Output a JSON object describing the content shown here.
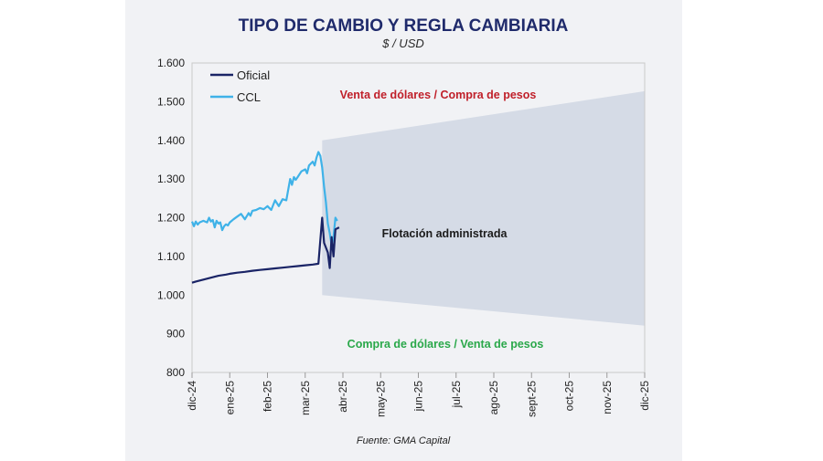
{
  "chart_data": {
    "type": "line",
    "title": "TIPO DE CAMBIO Y REGLA CAMBIARIA",
    "subtitle": "$ / USD",
    "source": "Fuente: GMA Capital",
    "xlabel": "",
    "ylabel": "",
    "ylim": [
      800,
      1600
    ],
    "yticks": [
      "800",
      "900",
      "1.000",
      "1.100",
      "1.200",
      "1.300",
      "1.400",
      "1.500",
      "1.600"
    ],
    "ytick_values": [
      800,
      900,
      1000,
      1100,
      1200,
      1300,
      1400,
      1500,
      1600
    ],
    "x_ticks": [
      "dic-24",
      "ene-25",
      "feb-25",
      "mar-25",
      "abr-25",
      "may-25",
      "jun-25",
      "jul-25",
      "ago-25",
      "sept-25",
      "oct-25",
      "nov-25",
      "dic-25"
    ],
    "x_unit": "months since dic-24 (tick index)",
    "legend": {
      "position": "top-left",
      "entries": [
        "Oficial",
        "CCL"
      ]
    },
    "colors": {
      "oficial": "#1a2466",
      "ccl": "#3fb2e8",
      "band": "#d5dbe6",
      "upper_label": "#c0202a",
      "lower_label": "#2aa84a",
      "middle_label": "#1b1b1b"
    },
    "series": [
      {
        "name": "Oficial",
        "color": "#1a2466",
        "x": [
          0,
          0.1,
          0.3,
          0.5,
          0.7,
          0.9,
          1.0,
          1.2,
          1.4,
          1.6,
          1.8,
          2.0,
          2.2,
          2.4,
          2.6,
          2.8,
          3.0,
          3.2,
          3.35,
          3.45,
          3.5,
          3.6,
          3.65,
          3.7,
          3.75,
          3.8,
          3.9
        ],
        "values": [
          1032,
          1035,
          1040,
          1045,
          1050,
          1053,
          1055,
          1058,
          1060,
          1063,
          1065,
          1067,
          1069,
          1071,
          1073,
          1075,
          1077,
          1079,
          1081,
          1200,
          1135,
          1110,
          1070,
          1150,
          1100,
          1170,
          1175
        ]
      },
      {
        "name": "CCL",
        "color": "#3fb2e8",
        "x": [
          0,
          0.05,
          0.1,
          0.15,
          0.2,
          0.3,
          0.4,
          0.45,
          0.5,
          0.55,
          0.6,
          0.65,
          0.7,
          0.75,
          0.8,
          0.85,
          0.9,
          0.95,
          1.0,
          1.1,
          1.2,
          1.3,
          1.4,
          1.5,
          1.55,
          1.6,
          1.7,
          1.8,
          1.9,
          2.0,
          2.1,
          2.2,
          2.3,
          2.4,
          2.5,
          2.6,
          2.65,
          2.7,
          2.75,
          2.8,
          2.9,
          3.0,
          3.05,
          3.1,
          3.15,
          3.2,
          3.25,
          3.3,
          3.35,
          3.4,
          3.45,
          3.5,
          3.55,
          3.6,
          3.65,
          3.7,
          3.75,
          3.8,
          3.85
        ],
        "values": [
          1190,
          1178,
          1190,
          1182,
          1188,
          1192,
          1188,
          1200,
          1190,
          1194,
          1175,
          1192,
          1185,
          1188,
          1168,
          1178,
          1183,
          1180,
          1188,
          1196,
          1203,
          1210,
          1196,
          1212,
          1205,
          1218,
          1220,
          1225,
          1222,
          1230,
          1220,
          1245,
          1230,
          1248,
          1245,
          1300,
          1285,
          1305,
          1298,
          1305,
          1320,
          1325,
          1315,
          1335,
          1340,
          1345,
          1335,
          1355,
          1370,
          1360,
          1330,
          1280,
          1240,
          1185,
          1160,
          1130,
          1150,
          1200,
          1192
        ]
      }
    ],
    "band": {
      "name": "Flotación administrada",
      "x": [
        3.45,
        12
      ],
      "upper": [
        1400,
        1527
      ],
      "lower": [
        1000,
        921
      ]
    },
    "annotations": {
      "upper": "Venta de dólares / Compra de pesos",
      "middle": "Flotación administrada",
      "lower": "Compra de dólares / Venta de pesos"
    },
    "grid": false
  }
}
